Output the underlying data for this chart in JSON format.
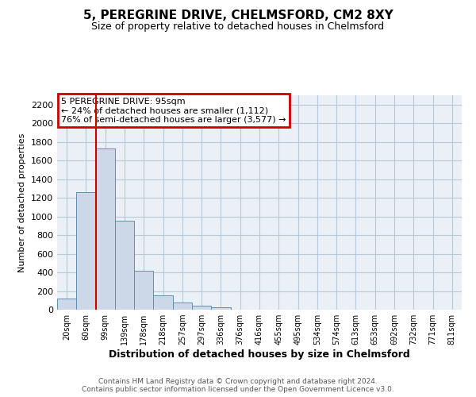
{
  "title1": "5, PEREGRINE DRIVE, CHELMSFORD, CM2 8XY",
  "title2": "Size of property relative to detached houses in Chelmsford",
  "xlabel": "Distribution of detached houses by size in Chelmsford",
  "ylabel": "Number of detached properties",
  "bar_labels": [
    "20sqm",
    "60sqm",
    "99sqm",
    "139sqm",
    "178sqm",
    "218sqm",
    "257sqm",
    "297sqm",
    "336sqm",
    "376sqm",
    "416sqm",
    "455sqm",
    "495sqm",
    "534sqm",
    "574sqm",
    "613sqm",
    "653sqm",
    "692sqm",
    "732sqm",
    "771sqm",
    "811sqm"
  ],
  "bar_heights": [
    120,
    1260,
    1730,
    950,
    415,
    155,
    80,
    40,
    25,
    0,
    0,
    0,
    0,
    0,
    0,
    0,
    0,
    0,
    0,
    0,
    0
  ],
  "bar_color": "#ccd8e8",
  "bar_edge_color": "#6090b0",
  "property_line_color": "#cc0000",
  "ylim": [
    0,
    2300
  ],
  "yticks": [
    0,
    200,
    400,
    600,
    800,
    1000,
    1200,
    1400,
    1600,
    1800,
    2000,
    2200
  ],
  "annotation_title": "5 PEREGRINE DRIVE: 95sqm",
  "annotation_line2": "← 24% of detached houses are smaller (1,112)",
  "annotation_line3": "76% of semi-detached houses are larger (3,577) →",
  "annotation_box_edgecolor": "#cc0000",
  "footer_line1": "Contains HM Land Registry data © Crown copyright and database right 2024.",
  "footer_line2": "Contains public sector information licensed under the Open Government Licence v3.0.",
  "plot_background": "#eaf0f6",
  "grid_color": "#b8cad8"
}
